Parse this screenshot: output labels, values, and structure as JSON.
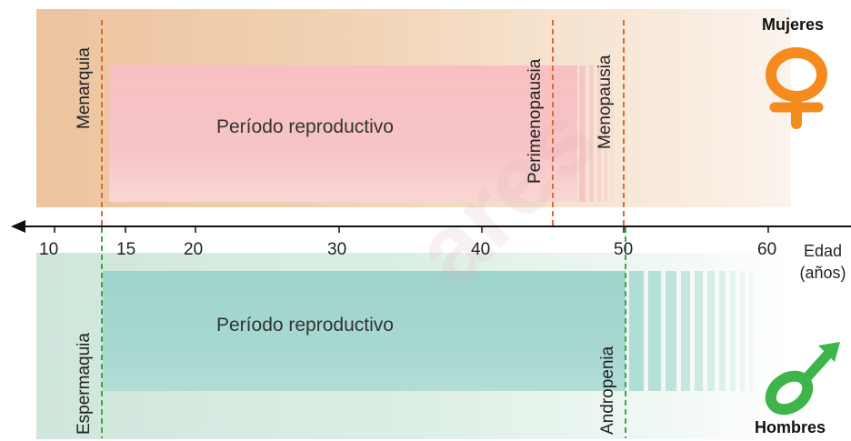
{
  "labels": {
    "menarquia": "Menarquia",
    "perimenopausia": "Perimenopausia",
    "menopausia": "Menopausia",
    "espermaquia": "Espermaquia",
    "andropenia": "Andropenia",
    "periodo_f": "Período reproductivo",
    "periodo_m": "Período reproductivo",
    "mujeres": "Mujeres",
    "hombres": "Hombres",
    "edad": "Edad",
    "anos": "(años)"
  },
  "axis": {
    "ticks": [
      "10",
      "15",
      "20",
      "30",
      "40",
      "50",
      "60"
    ]
  },
  "colors": {
    "female_symbol": "#f58a1f",
    "male_symbol": "#3db54a",
    "female_marker": "#e06a2c",
    "male_marker": "#3aa84a",
    "female_band": "#f6c2c4",
    "male_band": "#a3d6cf"
  },
  "icons": {
    "female": "venus-icon",
    "male": "mars-icon"
  }
}
